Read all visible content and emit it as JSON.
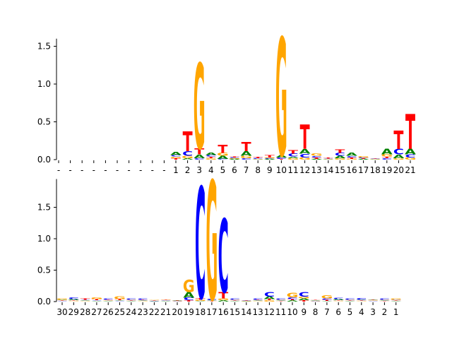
{
  "chart_data": [
    {
      "type": "sequence-logo",
      "title": "",
      "xlabel": "",
      "ylabel": "",
      "ylim": [
        0,
        1.6
      ],
      "yticks": [
        0.0,
        0.5,
        1.0,
        1.5
      ],
      "ytick_labels": [
        "0.0",
        "0.5",
        "1.0",
        "1.5"
      ],
      "colors": {
        "A": "#008000",
        "C": "#0000ff",
        "G": "#ffa500",
        "T": "#ff0000"
      },
      "positions": [
        "-",
        "-",
        "-",
        "-",
        "-",
        "-",
        "-",
        "-",
        "-",
        "-",
        "1",
        "2",
        "3",
        "4",
        "5",
        "6",
        "7",
        "8",
        "9",
        "10",
        "11",
        "12",
        "13",
        "14",
        "15",
        "16",
        "17",
        "18",
        "19",
        "20",
        "21"
      ],
      "columns": [
        [],
        [],
        [],
        [],
        [],
        [],
        [],
        [],
        [],
        [],
        [
          [
            "T",
            0.02
          ],
          [
            "G",
            0.02
          ],
          [
            "C",
            0.02
          ],
          [
            "A",
            0.04
          ]
        ],
        [
          [
            "A",
            0.02
          ],
          [
            "G",
            0.03
          ],
          [
            "C",
            0.06
          ],
          [
            "T",
            0.26
          ]
        ],
        [
          [
            "C",
            0.02
          ],
          [
            "A",
            0.05
          ],
          [
            "T",
            0.08
          ],
          [
            "G",
            1.13
          ]
        ],
        [
          [
            "G",
            0.02
          ],
          [
            "T",
            0.02
          ],
          [
            "C",
            0.02
          ],
          [
            "A",
            0.03
          ]
        ],
        [
          [
            "C",
            0.01
          ],
          [
            "A",
            0.04
          ],
          [
            "G",
            0.04
          ],
          [
            "T",
            0.11
          ]
        ],
        [
          [
            "A",
            0.01
          ],
          [
            "G",
            0.01
          ],
          [
            "C",
            0.01
          ],
          [
            "T",
            0.01
          ]
        ],
        [
          [
            "C",
            0.02
          ],
          [
            "G",
            0.03
          ],
          [
            "A",
            0.06
          ],
          [
            "T",
            0.12
          ]
        ],
        [
          [
            "A",
            0.005
          ],
          [
            "G",
            0.005
          ],
          [
            "C",
            0.01
          ],
          [
            "T",
            0.02
          ]
        ],
        [
          [
            "A",
            0.01
          ],
          [
            "C",
            0.01
          ],
          [
            "G",
            0.01
          ],
          [
            "T",
            0.03
          ]
        ],
        [
          [
            "T",
            0.01
          ],
          [
            "C",
            0.02
          ],
          [
            "A",
            0.03
          ],
          [
            "G",
            1.56
          ]
        ],
        [
          [
            "G",
            0.02
          ],
          [
            "A",
            0.02
          ],
          [
            "C",
            0.04
          ],
          [
            "T",
            0.05
          ]
        ],
        [
          [
            "G",
            0.03
          ],
          [
            "C",
            0.05
          ],
          [
            "A",
            0.06
          ],
          [
            "T",
            0.32
          ]
        ],
        [
          [
            "A",
            0.01
          ],
          [
            "T",
            0.02
          ],
          [
            "C",
            0.02
          ],
          [
            "G",
            0.03
          ]
        ],
        [
          [
            "A",
            0.005
          ],
          [
            "G",
            0.005
          ],
          [
            "C",
            0.005
          ],
          [
            "T",
            0.01
          ]
        ],
        [
          [
            "G",
            0.02
          ],
          [
            "A",
            0.03
          ],
          [
            "C",
            0.04
          ],
          [
            "T",
            0.05
          ]
        ],
        [
          [
            "G",
            0.01
          ],
          [
            "T",
            0.02
          ],
          [
            "C",
            0.02
          ],
          [
            "A",
            0.04
          ]
        ],
        [
          [
            "A",
            0.01
          ],
          [
            "T",
            0.01
          ],
          [
            "C",
            0.01
          ],
          [
            "G",
            0.02
          ]
        ],
        [
          [
            "A",
            0.005
          ],
          [
            "G",
            0.005
          ],
          [
            "C",
            0.005
          ],
          [
            "T",
            0.005
          ]
        ],
        [
          [
            "C",
            0.02
          ],
          [
            "T",
            0.02
          ],
          [
            "G",
            0.03
          ],
          [
            "A",
            0.07
          ]
        ],
        [
          [
            "G",
            0.02
          ],
          [
            "A",
            0.05
          ],
          [
            "C",
            0.07
          ],
          [
            "T",
            0.24
          ]
        ],
        [
          [
            "G",
            0.03
          ],
          [
            "C",
            0.04
          ],
          [
            "A",
            0.07
          ],
          [
            "T",
            0.46
          ]
        ]
      ]
    },
    {
      "type": "sequence-logo",
      "title": "",
      "xlabel": "",
      "ylabel": "",
      "ylim": [
        0,
        1.95
      ],
      "yticks": [
        0.0,
        0.5,
        1.0,
        1.5
      ],
      "ytick_labels": [
        "0.0",
        "0.5",
        "1.0",
        "1.5"
      ],
      "colors": {
        "A": "#008000",
        "C": "#0000ff",
        "G": "#ffa500",
        "T": "#ff0000"
      },
      "positions": [
        "30",
        "29",
        "28",
        "27",
        "26",
        "25",
        "24",
        "23",
        "22",
        "21",
        "20",
        "19",
        "18",
        "17",
        "16",
        "15",
        "14",
        "13",
        "12",
        "11",
        "10",
        "9",
        "8",
        "7",
        "6",
        "5",
        "4",
        "3",
        "2",
        "1"
      ],
      "columns": [
        [
          [
            "C",
            0.01
          ],
          [
            "T",
            0.01
          ],
          [
            "A",
            0.01
          ],
          [
            "G",
            0.02
          ]
        ],
        [
          [
            "G",
            0.01
          ],
          [
            "T",
            0.01
          ],
          [
            "A",
            0.02
          ],
          [
            "C",
            0.03
          ]
        ],
        [
          [
            "G",
            0.01
          ],
          [
            "A",
            0.01
          ],
          [
            "C",
            0.01
          ],
          [
            "T",
            0.02
          ]
        ],
        [
          [
            "A",
            0.01
          ],
          [
            "C",
            0.01
          ],
          [
            "T",
            0.02
          ],
          [
            "G",
            0.03
          ]
        ],
        [
          [
            "A",
            0.01
          ],
          [
            "G",
            0.01
          ],
          [
            "T",
            0.01
          ],
          [
            "C",
            0.02
          ]
        ],
        [
          [
            "C",
            0.01
          ],
          [
            "A",
            0.01
          ],
          [
            "T",
            0.02
          ],
          [
            "G",
            0.04
          ]
        ],
        [
          [
            "A",
            0.01
          ],
          [
            "T",
            0.01
          ],
          [
            "G",
            0.01
          ],
          [
            "C",
            0.02
          ]
        ],
        [
          [
            "G",
            0.01
          ],
          [
            "A",
            0.01
          ],
          [
            "T",
            0.01
          ],
          [
            "C",
            0.02
          ]
        ],
        [
          [
            "A",
            0.005
          ],
          [
            "C",
            0.01
          ],
          [
            "T",
            0.01
          ],
          [
            "G",
            0.01
          ]
        ],
        [
          [
            "A",
            0.01
          ],
          [
            "C",
            0.01
          ],
          [
            "T",
            0.01
          ],
          [
            "G",
            0.01
          ]
        ],
        [
          [
            "C",
            0.005
          ],
          [
            "G",
            0.005
          ],
          [
            "A",
            0.005
          ],
          [
            "T",
            0.01
          ]
        ],
        [
          [
            "T",
            0.02
          ],
          [
            "C",
            0.04
          ],
          [
            "A",
            0.09
          ],
          [
            "G",
            0.2
          ]
        ],
        [
          [
            "A",
            0.01
          ],
          [
            "G",
            0.02
          ],
          [
            "T",
            0.03
          ],
          [
            "C",
            1.77
          ]
        ],
        [
          [
            "T",
            0.01
          ],
          [
            "A",
            0.01
          ],
          [
            "C",
            0.02
          ],
          [
            "G",
            1.89
          ]
        ],
        [
          [
            "A",
            0.02
          ],
          [
            "G",
            0.03
          ],
          [
            "T",
            0.1
          ],
          [
            "C",
            1.17
          ]
        ],
        [
          [
            "A",
            0.01
          ],
          [
            "T",
            0.01
          ],
          [
            "G",
            0.01
          ],
          [
            "C",
            0.02
          ]
        ],
        [
          [
            "A",
            0.005
          ],
          [
            "G",
            0.005
          ],
          [
            "C",
            0.005
          ],
          [
            "T",
            0.01
          ]
        ],
        [
          [
            "G",
            0.01
          ],
          [
            "A",
            0.01
          ],
          [
            "T",
            0.01
          ],
          [
            "C",
            0.02
          ]
        ],
        [
          [
            "G",
            0.02
          ],
          [
            "T",
            0.02
          ],
          [
            "A",
            0.04
          ],
          [
            "C",
            0.07
          ]
        ],
        [
          [
            "T",
            0.01
          ],
          [
            "A",
            0.01
          ],
          [
            "G",
            0.01
          ],
          [
            "C",
            0.02
          ]
        ],
        [
          [
            "A",
            0.02
          ],
          [
            "T",
            0.02
          ],
          [
            "C",
            0.03
          ],
          [
            "G",
            0.07
          ]
        ],
        [
          [
            "T",
            0.02
          ],
          [
            "A",
            0.03
          ],
          [
            "G",
            0.03
          ],
          [
            "C",
            0.07
          ]
        ],
        [
          [
            "G",
            0.005
          ],
          [
            "C",
            0.005
          ],
          [
            "A",
            0.01
          ],
          [
            "T",
            0.01
          ]
        ],
        [
          [
            "A",
            0.01
          ],
          [
            "T",
            0.02
          ],
          [
            "C",
            0.02
          ],
          [
            "G",
            0.05
          ]
        ],
        [
          [
            "G",
            0.01
          ],
          [
            "T",
            0.01
          ],
          [
            "A",
            0.02
          ],
          [
            "C",
            0.02
          ]
        ],
        [
          [
            "A",
            0.01
          ],
          [
            "T",
            0.01
          ],
          [
            "G",
            0.01
          ],
          [
            "C",
            0.02
          ]
        ],
        [
          [
            "G",
            0.01
          ],
          [
            "T",
            0.01
          ],
          [
            "A",
            0.01
          ],
          [
            "C",
            0.03
          ]
        ],
        [
          [
            "C",
            0.01
          ],
          [
            "G",
            0.01
          ],
          [
            "A",
            0.01
          ],
          [
            "T",
            0.01
          ]
        ],
        [
          [
            "T",
            0.01
          ],
          [
            "A",
            0.01
          ],
          [
            "G",
            0.01
          ],
          [
            "C",
            0.02
          ]
        ],
        [
          [
            "A",
            0.01
          ],
          [
            "T",
            0.01
          ],
          [
            "C",
            0.01
          ],
          [
            "G",
            0.02
          ]
        ]
      ]
    }
  ]
}
